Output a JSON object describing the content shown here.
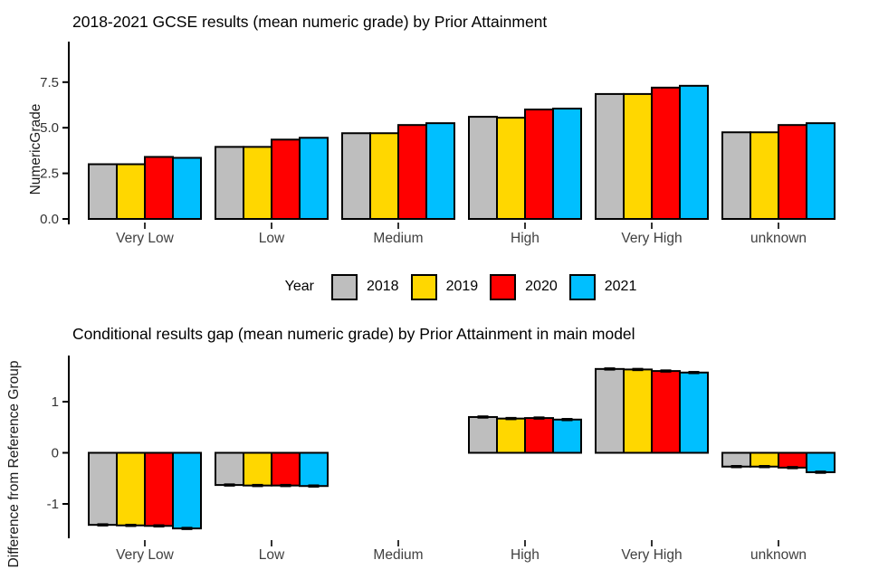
{
  "page": {
    "background": "#ffffff"
  },
  "legend": {
    "title": "Year",
    "items": [
      {
        "label": "2018",
        "color": "#BEBEBE"
      },
      {
        "label": "2019",
        "color": "#FFD700"
      },
      {
        "label": "2020",
        "color": "#FF0000"
      },
      {
        "label": "2021",
        "color": "#00BFFF"
      }
    ]
  },
  "chart_data": [
    {
      "type": "bar",
      "title": "2018-2021 GCSE results (mean numeric grade) by Prior Attainment",
      "xlabel": "",
      "ylabel": "NumericGrade",
      "categories": [
        "Very Low",
        "Low",
        "Medium",
        "High",
        "Very High",
        "unknown"
      ],
      "series": [
        {
          "name": "2018",
          "color": "#BEBEBE",
          "values": [
            3.0,
            3.95,
            4.7,
            5.6,
            6.85,
            4.75
          ]
        },
        {
          "name": "2019",
          "color": "#FFD700",
          "values": [
            3.0,
            3.95,
            4.7,
            5.55,
            6.85,
            4.75
          ]
        },
        {
          "name": "2020",
          "color": "#FF0000",
          "values": [
            3.4,
            4.35,
            5.15,
            6.0,
            7.2,
            5.15
          ]
        },
        {
          "name": "2021",
          "color": "#00BFFF",
          "values": [
            3.35,
            4.45,
            5.25,
            6.05,
            7.3,
            5.25
          ]
        }
      ],
      "yticks": [
        0,
        2.5,
        5,
        7.5
      ],
      "ytick_labels": [
        "0.0",
        "2.5",
        "5.0",
        "7.5"
      ],
      "ylim": [
        0,
        8.8
      ],
      "grid": false,
      "bar_outline": "#000000",
      "legend_position": "below-chart-shared"
    },
    {
      "type": "bar",
      "title": "Conditional results gap (mean numeric grade) by Prior Attainment in main model",
      "xlabel": "",
      "ylabel": "Difference from Reference Group",
      "categories": [
        "Very Low",
        "Low",
        "Medium",
        "High",
        "Very High",
        "unknown"
      ],
      "reference_category": "Medium",
      "series": [
        {
          "name": "2018",
          "color": "#BEBEBE",
          "values": [
            -1.41,
            -0.63,
            0,
            0.7,
            1.64,
            -0.27
          ]
        },
        {
          "name": "2019",
          "color": "#FFD700",
          "values": [
            -1.42,
            -0.64,
            0,
            0.67,
            1.63,
            -0.27
          ]
        },
        {
          "name": "2020",
          "color": "#FF0000",
          "values": [
            -1.43,
            -0.64,
            0,
            0.68,
            1.6,
            -0.29
          ]
        },
        {
          "name": "2021",
          "color": "#00BFFF",
          "values": [
            -1.48,
            -0.65,
            0,
            0.65,
            1.57,
            -0.38
          ]
        }
      ],
      "error_caps": true,
      "yticks": [
        1,
        0,
        -1
      ],
      "ytick_labels": [
        "1",
        "0",
        "-1"
      ],
      "ylim": [
        -1.6,
        1.9
      ],
      "grid": false,
      "bar_outline": "#000000"
    }
  ]
}
